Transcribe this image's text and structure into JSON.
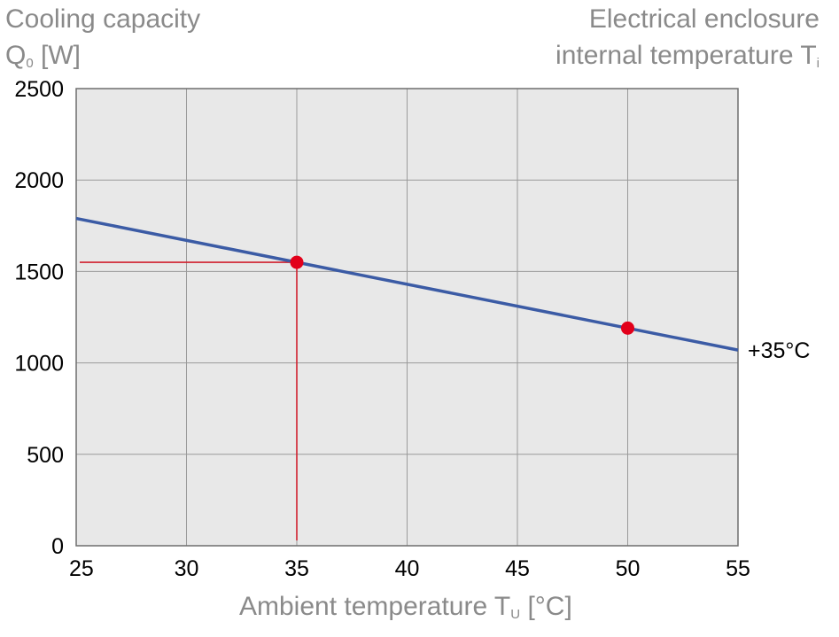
{
  "header": {
    "ylabel_line1": "Cooling capacity",
    "ylabel_main": "Q",
    "ylabel_sub": "0",
    "ylabel_unit": " [W]",
    "tr_line1": "Electrical enclosure",
    "tr_line2_main": "internal temperature T",
    "tr_line2_sub": "i"
  },
  "xlabel": {
    "main": "Ambient temperature T",
    "sub": "U",
    "unit": " [°C]"
  },
  "chart_data": {
    "type": "line",
    "xlim": [
      25,
      55
    ],
    "ylim": [
      0,
      2500
    ],
    "x_ticks": [
      25,
      30,
      35,
      40,
      45,
      50,
      55
    ],
    "y_ticks": [
      0,
      500,
      1000,
      1500,
      2000,
      2500
    ],
    "grid": true,
    "series": [
      {
        "name": "+35°C",
        "color": "#3b5ba5",
        "x": [
          25,
          55
        ],
        "y": [
          1790,
          1070
        ]
      }
    ],
    "points": [
      {
        "x": 35,
        "y": 1550,
        "color": "#e2001a"
      },
      {
        "x": 50,
        "y": 1190,
        "color": "#e2001a"
      }
    ],
    "reference_point": {
      "x": 35,
      "y": 1550,
      "color": "#d0202e"
    },
    "plot_bg": "#e8e8e8",
    "grid_color": "#9a9a9a"
  }
}
